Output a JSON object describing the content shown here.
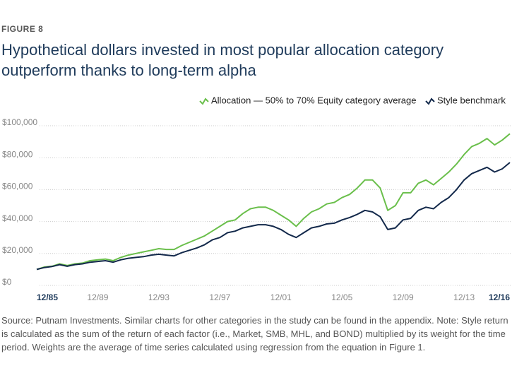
{
  "chart_data": {
    "type": "line",
    "figure_label": "FIGURE 8",
    "title": "Hypothetical dollars invested in most popular allocation category outperform thanks to long-term alpha",
    "source": "Source: Putnam Investments. Similar charts for other categories in the study can be found in the appendix. Note: Style return is calculated as the sum of the return of each factor (i.e., Market, SMB, MHL, and BOND) multiplied by its weight for the time period. Weights are the average of time series calculated using regression from the equation in Figure 1.",
    "categories": [
      "12/85",
      null,
      null,
      null,
      null,
      null,
      null,
      null,
      "12/89",
      null,
      null,
      null,
      null,
      null,
      null,
      null,
      "12/93",
      null,
      null,
      null,
      null,
      null,
      null,
      null,
      "12/97",
      null,
      null,
      null,
      null,
      null,
      null,
      null,
      "12/01",
      null,
      null,
      null,
      null,
      null,
      null,
      null,
      "12/05",
      null,
      null,
      null,
      null,
      null,
      null,
      null,
      "12/09",
      null,
      null,
      null,
      null,
      null,
      null,
      null,
      "12/13",
      null,
      null,
      null,
      null,
      null,
      "12/16"
    ],
    "series": [
      {
        "name": "Allocation — 50% to 70% Equity category average",
        "color": "#6abf4b",
        "values": [
          10000,
          11500,
          12000,
          13500,
          12500,
          13500,
          14000,
          15500,
          16000,
          16500,
          15500,
          17500,
          19000,
          20000,
          21000,
          22000,
          23000,
          22500,
          22500,
          25000,
          27000,
          29000,
          31000,
          34000,
          37000,
          40000,
          41000,
          45000,
          48000,
          49000,
          49000,
          47000,
          44000,
          41000,
          37000,
          42000,
          46000,
          48000,
          51000,
          52000,
          55000,
          57000,
          61000,
          66000,
          66000,
          61000,
          47000,
          50000,
          58000,
          58000,
          64000,
          66000,
          63000,
          67000,
          71000,
          76000,
          82000,
          87000,
          89000,
          92000,
          88000,
          91000,
          95000
        ]
      },
      {
        "name": "Style benchmark",
        "color": "#13294b",
        "values": [
          10000,
          11200,
          11800,
          13000,
          12000,
          13000,
          13500,
          14500,
          15000,
          15500,
          14500,
          16000,
          17000,
          17500,
          18000,
          19000,
          19500,
          19000,
          18500,
          20500,
          22000,
          23500,
          25500,
          28500,
          30000,
          33000,
          34000,
          36000,
          37000,
          38000,
          38000,
          37000,
          35000,
          32000,
          30000,
          33000,
          36000,
          37000,
          38500,
          39000,
          41000,
          42500,
          44500,
          47000,
          46000,
          43000,
          35000,
          36000,
          41000,
          42000,
          47000,
          49000,
          48000,
          52000,
          55000,
          60000,
          66000,
          70000,
          72000,
          74000,
          71000,
          73000,
          77000
        ]
      }
    ],
    "ylim": [
      0,
      100000
    ],
    "yticks": [
      {
        "value": 0,
        "label": "$0"
      },
      {
        "value": 20000,
        "label": "$20,000"
      },
      {
        "value": 40000,
        "label": "$40,000"
      },
      {
        "value": 60000,
        "label": "$60,000"
      },
      {
        "value": 80000,
        "label": "$80,000"
      },
      {
        "value": 100000,
        "label": "$100,000"
      }
    ],
    "grid": true
  }
}
